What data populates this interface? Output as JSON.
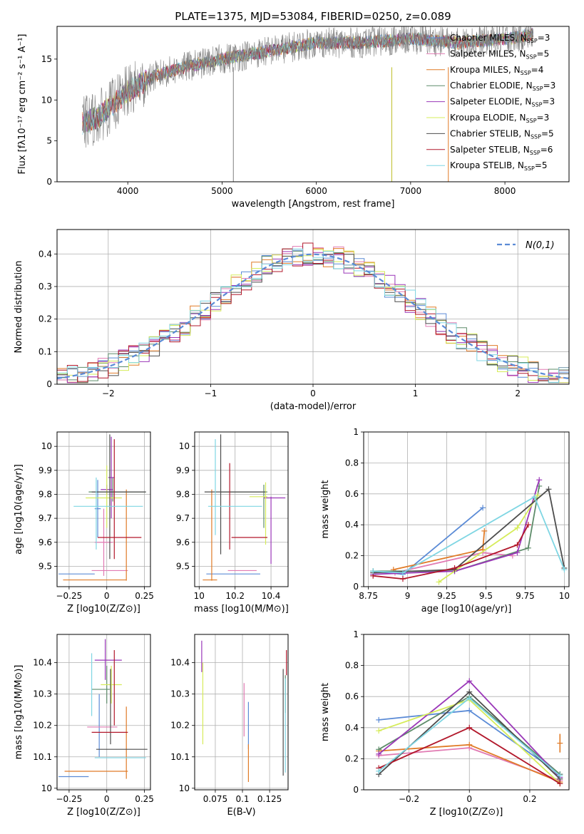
{
  "figure": {
    "title": "PLATE=1375, MJD=53084, FIBERID=0250, z=0.089"
  },
  "chart_data": [
    {
      "id": "spectrum",
      "type": "line",
      "xlabel": "wavelength [Angstrom, rest frame]",
      "ylabel": "Flux [fλ10⁻¹⁷ erg cm⁻² s⁻¹ A⁻¹]",
      "xlim": [
        3250,
        8680
      ],
      "ylim": [
        0,
        19
      ],
      "xticks": [
        4000,
        5000,
        6000,
        7000,
        8000
      ],
      "yticks": [
        0,
        5,
        10,
        15
      ],
      "grid": false,
      "legend_position": "top-right",
      "legend": [
        {
          "main": "Chabrier MILES, N",
          "sub": "SSP",
          "tail": "=3",
          "color": "#5b8bd6"
        },
        {
          "main": "Salpeter MILES, N",
          "sub": "SSP",
          "tail": "=5",
          "color": "#e17bb3"
        },
        {
          "main": "Kroupa MILES, N",
          "sub": "SSP",
          "tail": "=4",
          "color": "#e07b27"
        },
        {
          "main": "Chabrier ELODIE, N",
          "sub": "SSP",
          "tail": "=3",
          "color": "#5e8c6a"
        },
        {
          "main": "Salpeter ELODIE, N",
          "sub": "SSP",
          "tail": "=3",
          "color": "#9a37b8"
        },
        {
          "main": "Kroupa ELODIE, N",
          "sub": "SSP",
          "tail": "=3",
          "color": "#d6ec5a"
        },
        {
          "main": "Chabrier STELIB, N",
          "sub": "SSP",
          "tail": "=5",
          "color": "#4d4d4d"
        },
        {
          "main": "Salpeter STELIB, N",
          "sub": "SSP",
          "tail": "=6",
          "color": "#b2182b"
        },
        {
          "main": "Kroupa STELIB, N",
          "sub": "SSP",
          "tail": "=5",
          "color": "#7fd6e3"
        }
      ],
      "data_color": "#808080",
      "data_range": [
        3520,
        8300
      ],
      "continuum": [
        [
          3500,
          7
        ],
        [
          3700,
          8
        ],
        [
          4000,
          11
        ],
        [
          4300,
          13
        ],
        [
          4600,
          14
        ],
        [
          5000,
          15
        ],
        [
          5500,
          16
        ],
        [
          6000,
          17
        ],
        [
          6500,
          17
        ],
        [
          7000,
          17.5
        ],
        [
          7500,
          17
        ],
        [
          8000,
          17.5
        ],
        [
          8300,
          18
        ]
      ],
      "spikes": [
        {
          "x": 5120,
          "color": "#808080"
        },
        {
          "x": 6800,
          "color": "#bcbd22"
        },
        {
          "x": 7400,
          "color": "#e07b27"
        }
      ]
    },
    {
      "id": "residuals",
      "type": "histogram",
      "xlabel": "(data-model)/error",
      "ylabel": "Normed distribution",
      "xlim": [
        -2.5,
        2.5
      ],
      "ylim": [
        0,
        0.475
      ],
      "xticks": [
        -2,
        -1,
        0,
        1,
        2
      ],
      "yticks": [
        0.0,
        0.1,
        0.2,
        0.3,
        0.4
      ],
      "grid": true,
      "bin_width": 0.1,
      "reference": {
        "label": "N(0,1)",
        "mu": 0,
        "sigma": 1,
        "color": "#5b8bd6",
        "style": "dashed"
      },
      "legend_position": "top-right"
    },
    {
      "id": "age-vs-Z",
      "type": "errorbar",
      "xlabel": "Z [log10(Z/Z⊙)]",
      "ylabel": "age  [log10(age/yr)]",
      "xlim": [
        -0.33,
        0.29
      ],
      "ylim": [
        9.415,
        10.06
      ],
      "xticks": [
        -0.25,
        0.0,
        0.25
      ],
      "yticks": [
        9.5,
        9.6,
        9.7,
        9.8,
        9.9,
        10.0
      ],
      "grid": true,
      "points": [
        {
          "x": -0.2,
          "xerr": 0.12,
          "y": 9.468,
          "yerr": 0.0,
          "color": "#5b8bd6"
        },
        {
          "x": -0.06,
          "xerr": 0.02,
          "y": 9.74,
          "yerr": 0.12,
          "color": "#5b8bd6"
        },
        {
          "x": 0.02,
          "xerr": 0.12,
          "y": 9.482,
          "yerr": 0.0,
          "color": "#e17bb3"
        },
        {
          "x": -0.02,
          "xerr": 0.06,
          "y": 9.6,
          "yerr": 0.14,
          "color": "#e17bb3"
        },
        {
          "x": -0.08,
          "xerr": 0.21,
          "y": 9.443,
          "yerr": 0.0,
          "color": "#e07b27"
        },
        {
          "x": 0.13,
          "xerr": 0.0,
          "y": 9.63,
          "yerr": 0.19,
          "color": "#e07b27"
        },
        {
          "x": 0.07,
          "xerr": 0.19,
          "y": 9.81,
          "yerr": 0.0,
          "color": "#5e8c6a"
        },
        {
          "x": 0.04,
          "xerr": 0.0,
          "y": 9.82,
          "yerr": 0.05,
          "color": "#5e8c6a"
        },
        {
          "x": 0.0,
          "xerr": 0.04,
          "y": 9.82,
          "yerr": 0.02,
          "color": "#9a37b8"
        },
        {
          "x": 0.03,
          "xerr": 0.02,
          "y": 9.87,
          "yerr": 0.17,
          "color": "#9a37b8"
        },
        {
          "x": -0.02,
          "xerr": 0.12,
          "y": 9.785,
          "yerr": 0.0,
          "color": "#d6ec5a"
        },
        {
          "x": 0.0,
          "xerr": 0.0,
          "y": 9.79,
          "yerr": 0.13,
          "color": "#d6ec5a"
        },
        {
          "x": 0.08,
          "xerr": 0.18,
          "y": 9.81,
          "yerr": 0.0,
          "color": "#4d4d4d"
        },
        {
          "x": 0.02,
          "xerr": 0.0,
          "y": 9.79,
          "yerr": 0.26,
          "color": "#4d4d4d"
        },
        {
          "x": 0.085,
          "xerr": 0.145,
          "y": 9.62,
          "yerr": 0.0,
          "color": "#b2182b"
        },
        {
          "x": 0.05,
          "xerr": 0.0,
          "y": 9.78,
          "yerr": 0.25,
          "color": "#b2182b"
        },
        {
          "x": 0.01,
          "xerr": 0.23,
          "y": 9.75,
          "yerr": 0.0,
          "color": "#7fd6e3"
        },
        {
          "x": -0.07,
          "xerr": 0.0,
          "y": 9.72,
          "yerr": 0.15,
          "color": "#7fd6e3"
        }
      ]
    },
    {
      "id": "age-vs-mass",
      "type": "errorbar",
      "xlabel": "mass [log10(M/M⊙)]",
      "ylabel": "",
      "xlim": [
        9.975,
        10.495
      ],
      "ylim": [
        9.415,
        10.06
      ],
      "xticks": [
        10.0,
        10.2,
        10.4
      ],
      "yticks": [
        9.5,
        9.6,
        9.7,
        9.8,
        9.9,
        10.0
      ],
      "grid": true,
      "points": [
        {
          "x": 10.19,
          "xerr": 0.15,
          "y": 9.468,
          "yerr": 0.0,
          "color": "#5b8bd6"
        },
        {
          "x": 10.24,
          "xerr": 0.08,
          "y": 9.482,
          "yerr": 0.0,
          "color": "#e17bb3"
        },
        {
          "x": 10.06,
          "xerr": 0.04,
          "y": 9.443,
          "yerr": 0.0,
          "color": "#e07b27"
        },
        {
          "x": 10.07,
          "xerr": 0.0,
          "y": 9.63,
          "yerr": 0.19,
          "color": "#e07b27"
        },
        {
          "x": 10.25,
          "xerr": 0.13,
          "y": 9.81,
          "yerr": 0.0,
          "color": "#5e8c6a"
        },
        {
          "x": 10.36,
          "xerr": 0.0,
          "y": 9.75,
          "yerr": 0.09,
          "color": "#5e8c6a"
        },
        {
          "x": 10.42,
          "xerr": 0.06,
          "y": 9.785,
          "yerr": 0.0,
          "color": "#9a37b8"
        },
        {
          "x": 10.4,
          "xerr": 0.0,
          "y": 9.65,
          "yerr": 0.14,
          "color": "#9a37b8"
        },
        {
          "x": 10.33,
          "xerr": 0.05,
          "y": 9.79,
          "yerr": 0.0,
          "color": "#d6ec5a"
        },
        {
          "x": 10.37,
          "xerr": 0.0,
          "y": 9.72,
          "yerr": 0.13,
          "color": "#d6ec5a"
        },
        {
          "x": 10.2,
          "xerr": 0.17,
          "y": 9.81,
          "yerr": 0.0,
          "color": "#4d4d4d"
        },
        {
          "x": 10.12,
          "xerr": 0.0,
          "y": 9.8,
          "yerr": 0.25,
          "color": "#4d4d4d"
        },
        {
          "x": 10.28,
          "xerr": 0.1,
          "y": 9.62,
          "yerr": 0.0,
          "color": "#b2182b"
        },
        {
          "x": 10.17,
          "xerr": 0.0,
          "y": 9.75,
          "yerr": 0.18,
          "color": "#b2182b"
        },
        {
          "x": 10.2,
          "xerr": 0.15,
          "y": 9.75,
          "yerr": 0.0,
          "color": "#7fd6e3"
        },
        {
          "x": 10.09,
          "xerr": 0.0,
          "y": 9.83,
          "yerr": 0.2,
          "color": "#7fd6e3"
        }
      ]
    },
    {
      "id": "weight-vs-age",
      "type": "line",
      "xlabel": "age  [log10(age/yr)]",
      "ylabel": "mass weight",
      "xlim": [
        8.72,
        10.03
      ],
      "ylim": [
        0.0,
        1.0
      ],
      "xticks": [
        8.75,
        9.0,
        9.25,
        9.5,
        9.75,
        10.0
      ],
      "yticks": [
        0.0,
        0.2,
        0.4,
        0.6,
        0.8,
        1.0
      ],
      "grid": true,
      "series": [
        {
          "color": "#5b8bd6",
          "x": [
            8.78,
            8.97,
            9.48
          ],
          "y": [
            0.1,
            0.08,
            0.51
          ]
        },
        {
          "color": "#e17bb3",
          "x": [
            8.92,
            9.48,
            9.67
          ],
          "y": [
            0.09,
            0.22,
            0.2
          ]
        },
        {
          "color": "#e07b27",
          "x": [
            8.91,
            9.48,
            9.49
          ],
          "y": [
            0.11,
            0.24,
            0.36
          ]
        },
        {
          "color": "#5e8c6a",
          "x": [
            8.78,
            9.3,
            9.77,
            9.84
          ],
          "y": [
            0.1,
            0.1,
            0.25,
            0.65
          ]
        },
        {
          "color": "#9a37b8",
          "x": [
            8.78,
            9.3,
            9.7,
            9.84
          ],
          "y": [
            0.08,
            0.1,
            0.22,
            0.69
          ]
        },
        {
          "color": "#d6ec5a",
          "x": [
            9.2,
            9.7,
            9.83
          ],
          "y": [
            0.03,
            0.38,
            0.59
          ]
        },
        {
          "color": "#4d4d4d",
          "x": [
            8.78,
            9.3,
            9.9,
            10.0
          ],
          "y": [
            0.09,
            0.11,
            0.63,
            0.12
          ]
        },
        {
          "color": "#b2182b",
          "x": [
            8.78,
            8.97,
            9.3,
            9.7,
            9.77
          ],
          "y": [
            0.07,
            0.05,
            0.12,
            0.27,
            0.4
          ]
        },
        {
          "color": "#7fd6e3",
          "x": [
            8.78,
            8.97,
            9.81,
            10.0
          ],
          "y": [
            0.1,
            0.09,
            0.58,
            0.11
          ]
        }
      ]
    },
    {
      "id": "mass-vs-Z",
      "type": "errorbar",
      "xlabel": "Z [log10(Z/Z⊙)]",
      "ylabel": "mass [log10(M/M⊙)]",
      "xlim": [
        -0.33,
        0.29
      ],
      "ylim": [
        9.995,
        10.49
      ],
      "xticks": [
        -0.25,
        0.0,
        0.25
      ],
      "yticks": [
        10.0,
        10.1,
        10.2,
        10.3,
        10.4
      ],
      "grid": true,
      "points": [
        {
          "x": -0.22,
          "xerr": 0.1,
          "y": 10.037,
          "yerr": 0.0,
          "color": "#5b8bd6"
        },
        {
          "x": -0.05,
          "xerr": 0.0,
          "y": 10.2,
          "yerr": 0.1,
          "color": "#5b8bd6"
        },
        {
          "x": -0.03,
          "xerr": 0.1,
          "y": 10.195,
          "yerr": 0.0,
          "color": "#e17bb3"
        },
        {
          "x": -0.07,
          "xerr": 0.21,
          "y": 10.054,
          "yerr": 0.0,
          "color": "#e07b27"
        },
        {
          "x": 0.13,
          "xerr": 0.0,
          "y": 10.145,
          "yerr": 0.115,
          "color": "#e07b27"
        },
        {
          "x": -0.04,
          "xerr": 0.06,
          "y": 10.315,
          "yerr": 0.0,
          "color": "#5e8c6a"
        },
        {
          "x": 0.0,
          "xerr": 0.0,
          "y": 10.33,
          "yerr": 0.06,
          "color": "#5e8c6a"
        },
        {
          "x": 0.01,
          "xerr": 0.09,
          "y": 10.408,
          "yerr": 0.0,
          "color": "#9a37b8"
        },
        {
          "x": -0.01,
          "xerr": 0.0,
          "y": 10.41,
          "yerr": 0.065,
          "color": "#9a37b8"
        },
        {
          "x": 0.03,
          "xerr": 0.07,
          "y": 10.33,
          "yerr": 0.0,
          "color": "#d6ec5a"
        },
        {
          "x": 0.03,
          "xerr": 0.0,
          "y": 10.33,
          "yerr": 0.06,
          "color": "#d6ec5a"
        },
        {
          "x": 0.1,
          "xerr": 0.17,
          "y": 10.124,
          "yerr": 0.0,
          "color": "#4d4d4d"
        },
        {
          "x": 0.025,
          "xerr": 0.0,
          "y": 10.26,
          "yerr": 0.12,
          "color": "#4d4d4d"
        },
        {
          "x": 0.02,
          "xerr": 0.12,
          "y": 10.178,
          "yerr": 0.0,
          "color": "#b2182b"
        },
        {
          "x": 0.05,
          "xerr": 0.0,
          "y": 10.32,
          "yerr": 0.12,
          "color": "#b2182b"
        },
        {
          "x": 0.09,
          "xerr": 0.17,
          "y": 10.097,
          "yerr": 0.0,
          "color": "#7fd6e3"
        },
        {
          "x": -0.1,
          "xerr": 0.0,
          "y": 10.33,
          "yerr": 0.1,
          "color": "#7fd6e3"
        }
      ]
    },
    {
      "id": "mass-vs-ebv",
      "type": "errorbar",
      "xlabel": "E(B-V)",
      "ylabel": "",
      "xlim": [
        0.056,
        0.142
      ],
      "ylim": [
        9.995,
        10.49
      ],
      "xticks": [
        0.075,
        0.1,
        0.125
      ],
      "yticks": [
        10.0,
        10.1,
        10.2,
        10.3,
        10.4
      ],
      "grid": true,
      "points": [
        {
          "x": 0.1055,
          "xerr": 0.0,
          "y": 10.2,
          "yerr": 0.075,
          "color": "#5b8bd6"
        },
        {
          "x": 0.1015,
          "xerr": 0.0,
          "y": 10.25,
          "yerr": 0.085,
          "color": "#e17bb3"
        },
        {
          "x": 0.1055,
          "xerr": 0.0,
          "y": 10.08,
          "yerr": 0.06,
          "color": "#e07b27"
        },
        {
          "x": 0.1395,
          "xerr": 0.0,
          "y": 10.3,
          "yerr": 0.06,
          "color": "#5e8c6a"
        },
        {
          "x": 0.0625,
          "xerr": 0.0,
          "y": 10.42,
          "yerr": 0.05,
          "color": "#9a37b8"
        },
        {
          "x": 0.0635,
          "xerr": 0.0,
          "y": 10.27,
          "yerr": 0.13,
          "color": "#d6ec5a"
        },
        {
          "x": 0.1375,
          "xerr": 0.0,
          "y": 10.21,
          "yerr": 0.17,
          "color": "#4d4d4d"
        },
        {
          "x": 0.1405,
          "xerr": 0.0,
          "y": 10.4,
          "yerr": 0.04,
          "color": "#b2182b"
        },
        {
          "x": 0.1395,
          "xerr": 0.0,
          "y": 10.2,
          "yerr": 0.15,
          "color": "#7fd6e3"
        }
      ]
    },
    {
      "id": "weight-vs-Z",
      "type": "line",
      "xlabel": "Z [log10(Z/Z⊙)]",
      "ylabel": "mass weight",
      "xlim": [
        -0.35,
        0.33
      ],
      "ylim": [
        0.0,
        1.0
      ],
      "xticks": [
        -0.2,
        0.0,
        0.2
      ],
      "yticks": [
        0.0,
        0.2,
        0.4,
        0.6,
        0.8,
        1.0
      ],
      "grid": true,
      "series": [
        {
          "color": "#5b8bd6",
          "x": [
            -0.3,
            0.0,
            0.3
          ],
          "y": [
            0.45,
            0.51,
            0.1
          ]
        },
        {
          "color": "#e17bb3",
          "x": [
            -0.3,
            0.0,
            0.3
          ],
          "y": [
            0.22,
            0.27,
            0.06
          ]
        },
        {
          "color": "#e07b27",
          "x": [
            -0.3,
            0.0,
            0.3
          ],
          "y": [
            0.25,
            0.29,
            0.05
          ]
        },
        {
          "color": "#5e8c6a",
          "x": [
            -0.3,
            0.0,
            0.3
          ],
          "y": [
            0.26,
            0.6,
            0.1
          ]
        },
        {
          "color": "#9a37b8",
          "x": [
            -0.3,
            0.0,
            0.3
          ],
          "y": [
            0.23,
            0.7,
            0.08
          ]
        },
        {
          "color": "#d6ec5a",
          "x": [
            -0.3,
            0.0,
            0.3
          ],
          "y": [
            0.38,
            0.58,
            0.04
          ]
        },
        {
          "color": "#4d4d4d",
          "x": [
            -0.3,
            0.0,
            0.3
          ],
          "y": [
            0.1,
            0.63,
            0.07
          ]
        },
        {
          "color": "#b2182b",
          "x": [
            -0.3,
            0.0,
            0.3
          ],
          "y": [
            0.14,
            0.4,
            0.04
          ]
        },
        {
          "color": "#7fd6e3",
          "x": [
            -0.3,
            0.0,
            0.3
          ],
          "y": [
            0.12,
            0.59,
            0.09
          ]
        },
        {
          "color": "#e07b27",
          "x": [
            0.3
          ],
          "y": [
            0.3
          ],
          "yerr": [
            0.06
          ]
        }
      ]
    }
  ]
}
